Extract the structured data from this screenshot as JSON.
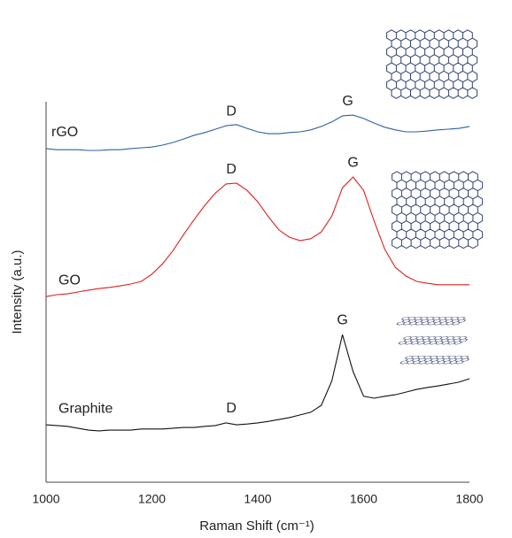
{
  "chart_data": {
    "type": "line",
    "x_label": "Raman Shift (cm⁻¹)",
    "y_label": "Intensity (a.u.)",
    "xlim": [
      1000,
      1800
    ],
    "xticks": [
      1000,
      1200,
      1400,
      1600,
      1800
    ],
    "ylim": [
      0,
      100
    ],
    "grid": false,
    "x": [
      1000,
      1020,
      1040,
      1060,
      1080,
      1100,
      1120,
      1140,
      1160,
      1180,
      1200,
      1220,
      1240,
      1260,
      1280,
      1300,
      1320,
      1340,
      1360,
      1380,
      1400,
      1420,
      1440,
      1460,
      1480,
      1500,
      1520,
      1540,
      1560,
      1580,
      1600,
      1620,
      1640,
      1660,
      1680,
      1700,
      1720,
      1740,
      1760,
      1780,
      1800
    ],
    "series": [
      {
        "name": "rGO",
        "color": "#2f5fa8",
        "values": [
          87.7,
          87.4,
          87.4,
          87.4,
          87.2,
          87.2,
          87.4,
          87.4,
          87.7,
          87.9,
          88.1,
          88.6,
          89.3,
          90.2,
          91.2,
          91.9,
          92.8,
          93.7,
          94.0,
          93.0,
          92.1,
          91.6,
          91.6,
          91.9,
          92.1,
          92.6,
          93.5,
          94.7,
          96.3,
          96.5,
          95.6,
          94.4,
          93.3,
          92.6,
          92.1,
          92.1,
          92.3,
          92.6,
          92.8,
          93.0,
          93.5
        ],
        "peaks": [
          {
            "label": "D",
            "x": 1350
          },
          {
            "label": "G",
            "x": 1570
          }
        ]
      },
      {
        "name": "GO",
        "color": "#e02020",
        "values": [
          48.8,
          49.3,
          49.5,
          50.0,
          50.5,
          50.9,
          51.2,
          51.6,
          52.1,
          52.8,
          54.7,
          57.4,
          60.9,
          65.1,
          69.1,
          72.8,
          76.0,
          78.4,
          78.6,
          76.7,
          73.7,
          69.8,
          66.3,
          64.4,
          63.5,
          64.0,
          65.8,
          70.0,
          77.4,
          80.2,
          76.7,
          68.6,
          61.2,
          56.5,
          54.2,
          52.8,
          52.3,
          51.9,
          51.9,
          51.9,
          51.9
        ],
        "peaks": [
          {
            "label": "D",
            "x": 1350
          },
          {
            "label": "G",
            "x": 1580
          }
        ]
      },
      {
        "name": "Graphite",
        "color": "#111111",
        "values": [
          15.1,
          14.9,
          14.7,
          14.2,
          13.7,
          13.5,
          13.7,
          13.7,
          13.7,
          14.0,
          14.0,
          14.0,
          14.2,
          14.4,
          14.4,
          14.7,
          14.9,
          15.6,
          15.1,
          15.3,
          15.6,
          16.0,
          16.5,
          17.0,
          17.7,
          18.4,
          20.2,
          26.7,
          38.8,
          29.1,
          22.6,
          22.1,
          22.6,
          23.0,
          23.7,
          24.4,
          24.9,
          25.3,
          25.8,
          26.3,
          27.2
        ],
        "peaks": [
          {
            "label": "D",
            "x": 1350
          },
          {
            "label": "G",
            "x": 1560
          }
        ]
      }
    ]
  }
}
